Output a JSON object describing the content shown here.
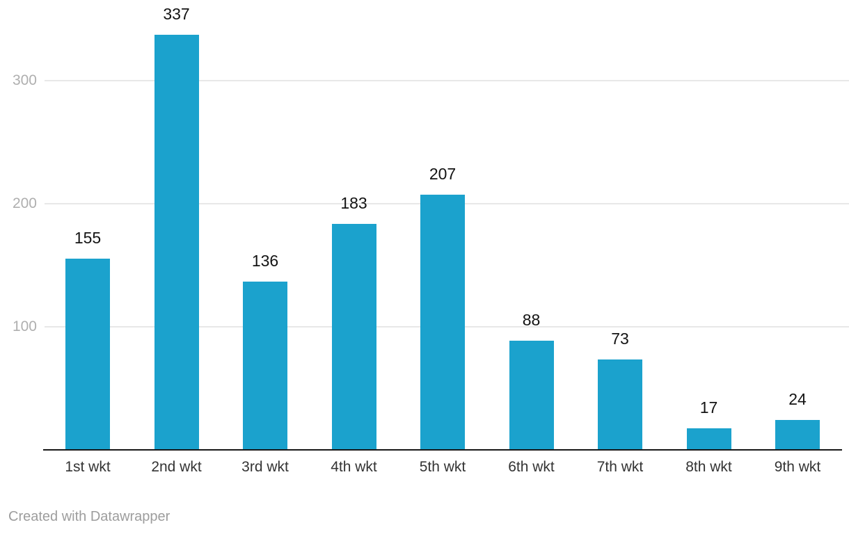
{
  "chart_data": {
    "type": "bar",
    "categories": [
      "1st wkt",
      "2nd wkt",
      "3rd wkt",
      "4th wkt",
      "5th wkt",
      "6th wkt",
      "7th wkt",
      "8th wkt",
      "9th wkt"
    ],
    "values": [
      155,
      337,
      136,
      183,
      207,
      88,
      73,
      17,
      24
    ],
    "title": "",
    "xlabel": "",
    "ylabel": "",
    "ylim": [
      0,
      365
    ],
    "yticks": [
      100,
      200,
      300
    ],
    "grid": "horizontal",
    "legend": "none",
    "value_labels": "above bars"
  },
  "colors": {
    "bar": "#1BA2CD",
    "value_label": "#131313",
    "x_label": "#333333",
    "y_tick": "#AFAFAF",
    "gridline": "#E8E8E8",
    "axis": "#171717",
    "footer": "#9D9D9D",
    "background": "#FFFFFF"
  },
  "footer": {
    "credit": "Created with Datawrapper"
  }
}
